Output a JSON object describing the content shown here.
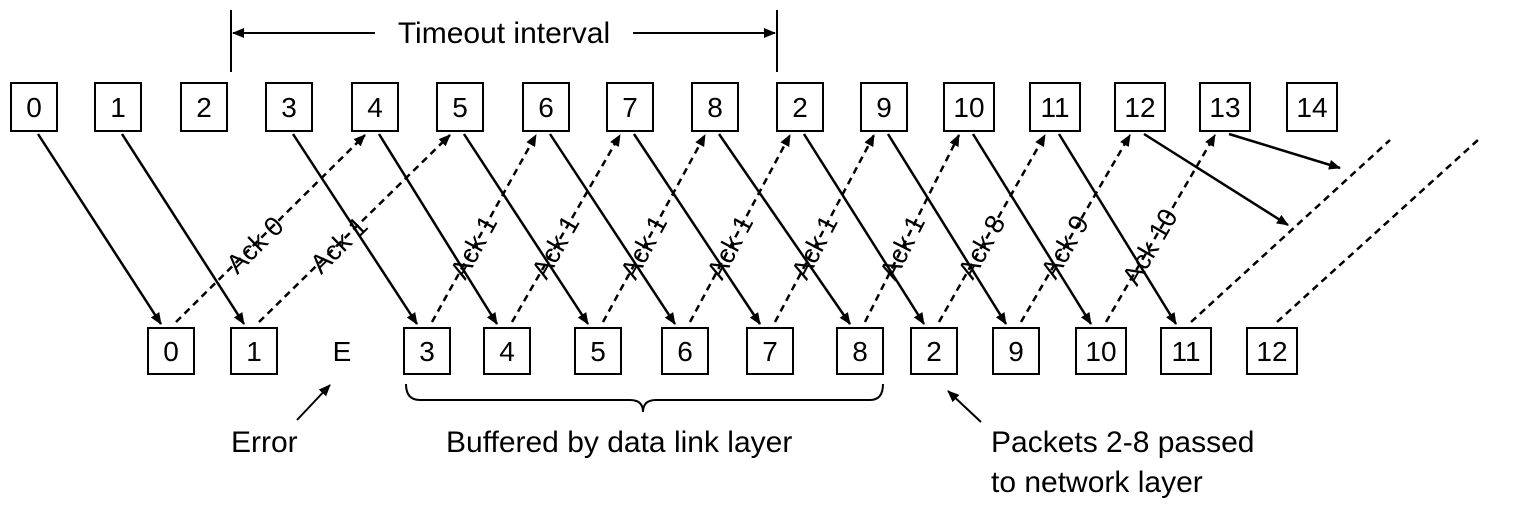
{
  "sender_frames": [
    "0",
    "1",
    "2",
    "3",
    "4",
    "5",
    "6",
    "7",
    "8",
    "2",
    "9",
    "10",
    "11",
    "12",
    "13",
    "14"
  ],
  "receiver_frames": [
    "0",
    "1",
    "E",
    "3",
    "4",
    "5",
    "6",
    "7",
    "8",
    "2",
    "9",
    "10",
    "11",
    "12"
  ],
  "acks": [
    "Ack 0",
    "Ack 1",
    "Ack 1",
    "Ack 1",
    "Ack 1",
    "Ack 1",
    "Ack 1",
    "Ack 1",
    "Ack 8",
    "Ack 9",
    "Ack 10"
  ],
  "labels": {
    "timeout": "Timeout interval",
    "error": "Error",
    "buffered": "Buffered by data link layer",
    "passed_line1": "Packets 2-8 passed",
    "passed_line2": "to network layer"
  }
}
